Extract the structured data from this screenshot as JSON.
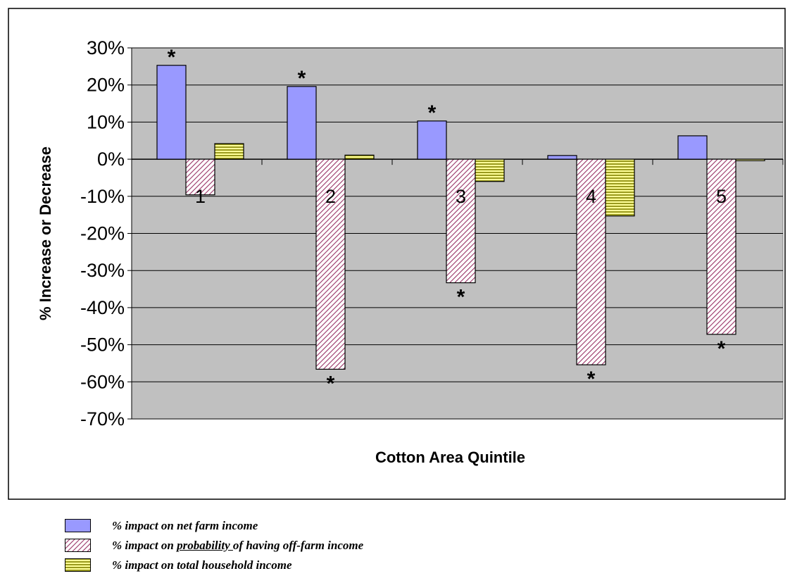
{
  "chart_data": {
    "type": "bar",
    "xlabel": "Cotton Area Quintile",
    "ylabel": "% Increase or Decrease",
    "ylim": [
      -70,
      30
    ],
    "yticks": [
      "30%",
      "20%",
      "10%",
      "0%",
      "-10%",
      "-20%",
      "-30%",
      "-40%",
      "-50%",
      "-60%",
      "-70%"
    ],
    "ytick_values": [
      30,
      20,
      10,
      0,
      -10,
      -20,
      -30,
      -40,
      -50,
      -60,
      -70
    ],
    "categories": [
      "1",
      "2",
      "3",
      "4",
      "5"
    ],
    "grid": true,
    "legend_position": "bottom-left",
    "significance_marker": "*",
    "series": [
      {
        "name": "% impact on net farm income",
        "values": [
          25.3,
          19.6,
          10.3,
          1.0,
          6.3
        ],
        "significant": [
          true,
          true,
          true,
          false,
          false
        ],
        "color": "#9999FF",
        "pattern": "solid"
      },
      {
        "name": "% impact on probability of having off-farm income",
        "name_parts": [
          "% impact on ",
          "probability ",
          "of having off-farm income"
        ],
        "values": [
          -9.6,
          -56.6,
          -33.3,
          -55.4,
          -47.2
        ],
        "significant": [
          false,
          true,
          true,
          true,
          true
        ],
        "color": "#993366",
        "pattern": "diagonal"
      },
      {
        "name": "% impact on total household income",
        "values": [
          4.2,
          1.1,
          -6.0,
          -15.3,
          -0.4
        ],
        "significant": [
          false,
          false,
          false,
          false,
          false
        ],
        "color": "#CCCC66",
        "pattern": "horizontal"
      }
    ],
    "plot_background": "#C0C0C0"
  }
}
